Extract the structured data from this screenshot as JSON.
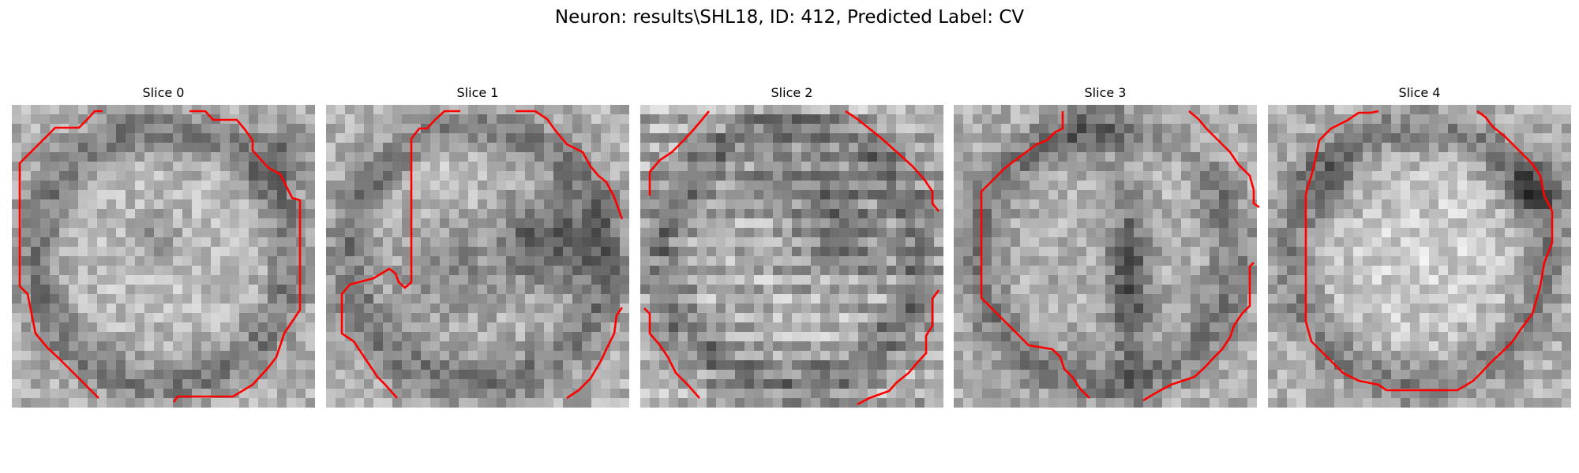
{
  "figure": {
    "title": "Neuron: results\\SHL18, ID: 412, Predicted Label: CV",
    "contour_color": "#ff0000",
    "colormap": "gray",
    "slices": [
      {
        "title": "Slice 0",
        "pattern": "ring_blob"
      },
      {
        "title": "Slice 1",
        "pattern": "dark_right"
      },
      {
        "title": "Slice 2",
        "pattern": "stripes"
      },
      {
        "title": "Slice 3",
        "pattern": "vertical_dark"
      },
      {
        "title": "Slice 4",
        "pattern": "bright_center"
      }
    ]
  }
}
